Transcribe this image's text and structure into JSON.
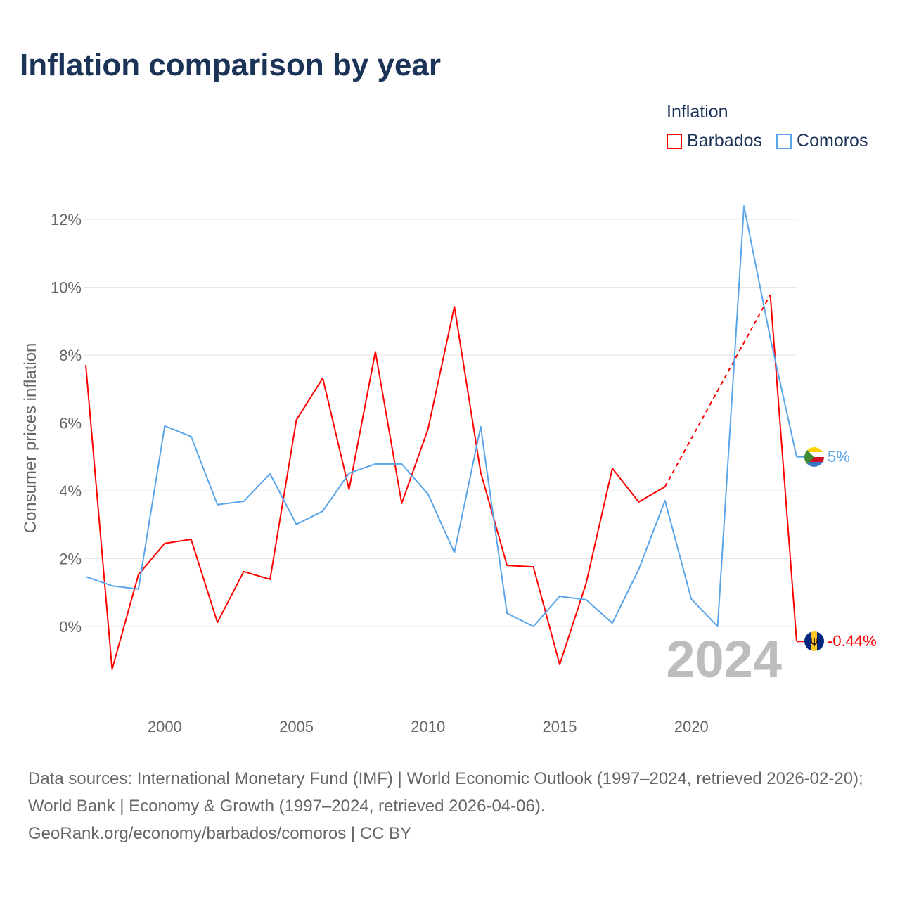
{
  "title": "Inflation comparison by year",
  "legend": {
    "title": "Inflation",
    "items": [
      {
        "name": "Barbados",
        "color": "#ff0000"
      },
      {
        "name": "Comoros",
        "color": "#5aa5ea"
      }
    ]
  },
  "watermark_year": "2024",
  "end_labels": {
    "barbados": "-0.44%",
    "comoros": "5%"
  },
  "footer": {
    "sources": "Data sources: International Monetary Fund (IMF) | World Economic Outlook (1997–2024, retrieved 2026-02-20); World Bank | Economy & Growth (1997–2024, retrieved 2026-04-06).",
    "credit": "GeoRank.org/economy/barbados/comoros | CC BY"
  },
  "chart_data": {
    "type": "line",
    "title": "Inflation comparison by year",
    "xlabel": "",
    "ylabel": "Consumer prices inflation",
    "x": [
      1997,
      1998,
      1999,
      2000,
      2001,
      2002,
      2003,
      2004,
      2005,
      2006,
      2007,
      2008,
      2009,
      2010,
      2011,
      2012,
      2013,
      2014,
      2015,
      2016,
      2017,
      2018,
      2019,
      2020,
      2021,
      2022,
      2023,
      2024
    ],
    "series": [
      {
        "name": "Barbados",
        "color": "#ff0000",
        "values": [
          7.71,
          -1.26,
          1.53,
          2.45,
          2.57,
          0.12,
          1.62,
          1.39,
          6.09,
          7.32,
          4.04,
          8.1,
          3.63,
          5.82,
          9.43,
          4.54,
          1.8,
          1.76,
          -1.12,
          1.26,
          4.66,
          3.67,
          4.12,
          null,
          null,
          null,
          9.78,
          -0.44
        ]
      },
      {
        "name": "Comoros",
        "color": "#5aa5ea",
        "values": [
          1.47,
          1.2,
          1.1,
          5.91,
          5.6,
          3.59,
          3.69,
          4.5,
          3.01,
          3.4,
          4.52,
          4.79,
          4.79,
          3.9,
          2.18,
          5.89,
          0.39,
          0.0,
          0.89,
          0.79,
          0.1,
          1.68,
          3.71,
          0.81,
          0.0,
          12.39,
          8.5,
          5.0
        ]
      }
    ],
    "xlim": [
      1997,
      2024
    ],
    "ylim": [
      -2.5,
      13.5
    ],
    "xticks": [
      2000,
      2005,
      2010,
      2015,
      2020
    ],
    "xtick_labels": [
      "2000",
      "2005",
      "2010",
      "2015",
      "2020"
    ],
    "yticks": [
      0,
      2,
      4,
      6,
      8,
      10,
      12
    ],
    "ytick_labels": [
      "0%",
      "2%",
      "4%",
      "6%",
      "8%",
      "10%",
      "12%"
    ],
    "grid": true,
    "legend_position": "top-right"
  }
}
